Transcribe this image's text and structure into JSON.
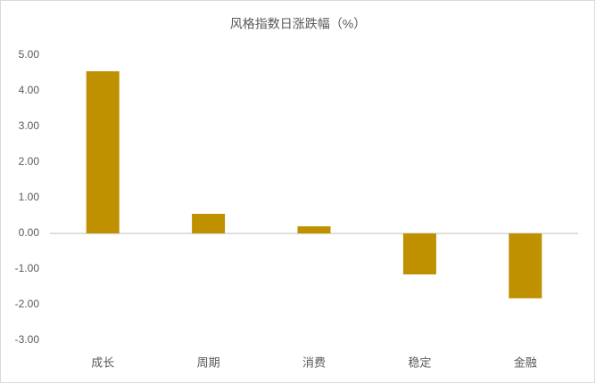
{
  "chart_data": {
    "type": "bar",
    "title": "风格指数日涨跌幅（%）",
    "categories": [
      "成长",
      "周期",
      "消费",
      "稳定",
      "金融"
    ],
    "values": [
      4.55,
      0.55,
      0.2,
      -1.15,
      -1.82
    ],
    "color": "#bf9000",
    "ylim": [
      -3,
      5
    ],
    "yticks": [
      {
        "value": -3,
        "label": "-3.00"
      },
      {
        "value": -2,
        "label": "-2.00"
      },
      {
        "value": -1,
        "label": "-1.00"
      },
      {
        "value": 0,
        "label": "0.00"
      },
      {
        "value": 1,
        "label": "1.00"
      },
      {
        "value": 2,
        "label": "2.00"
      },
      {
        "value": 3,
        "label": "3.00"
      },
      {
        "value": 4,
        "label": "4.00"
      },
      {
        "value": 5,
        "label": "5.00"
      }
    ],
    "grid": false
  }
}
